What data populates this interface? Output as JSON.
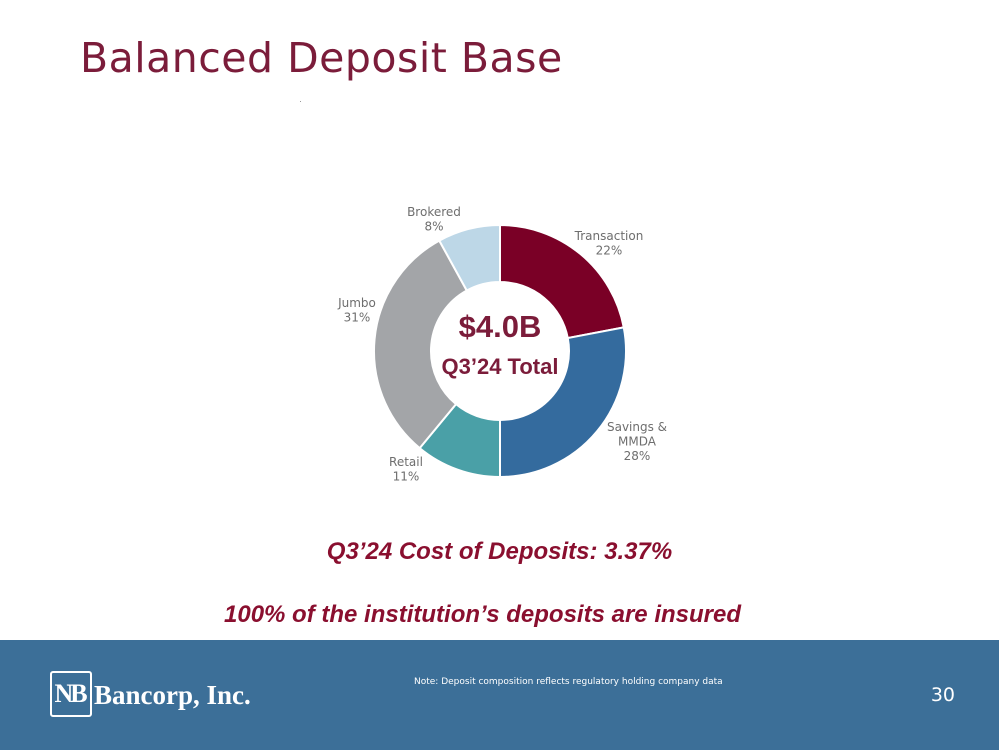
{
  "slide": {
    "title": "Balanced Deposit Base",
    "cost_of_deposits": "Q3’24 Cost of Deposits: 3.37%",
    "insured_statement": "100% of the institution’s deposits are insured"
  },
  "chart_data": {
    "type": "pie",
    "variant": "donut",
    "center_line_1": "$4.0B",
    "center_line_2": "Q3’24 Total",
    "slices": [
      {
        "label_lines": [
          "Transaction"
        ],
        "value": 22,
        "value_label": "22%",
        "color": "#7a0026"
      },
      {
        "label_lines": [
          "Savings &",
          "MMDA"
        ],
        "value": 28,
        "value_label": "28%",
        "color": "#346b9e"
      },
      {
        "label_lines": [
          "Retail"
        ],
        "value": 11,
        "value_label": "11%",
        "color": "#4aa0a7"
      },
      {
        "label_lines": [
          "Jumbo"
        ],
        "value": 31,
        "value_label": "31%",
        "color": "#a3a5a8"
      },
      {
        "label_lines": [
          "Brokered"
        ],
        "value": 8,
        "value_label": "8%",
        "color": "#bdd7e7"
      }
    ]
  },
  "footer": {
    "logo_mark": "NB",
    "logo_text": "Bancorp, Inc.",
    "note": "Note: Deposit composition reflects regulatory holding company data",
    "page_number": "30",
    "background_color": "#3c6f98"
  }
}
